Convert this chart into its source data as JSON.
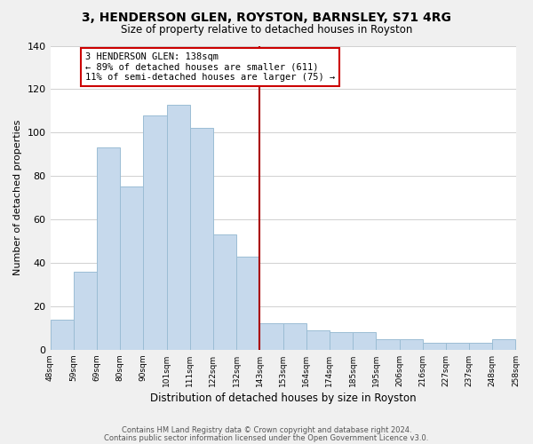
{
  "title": "3, HENDERSON GLEN, ROYSTON, BARNSLEY, S71 4RG",
  "subtitle": "Size of property relative to detached houses in Royston",
  "xlabel": "Distribution of detached houses by size in Royston",
  "ylabel": "Number of detached properties",
  "bar_labels": [
    "48sqm",
    "59sqm",
    "69sqm",
    "80sqm",
    "90sqm",
    "101sqm",
    "111sqm",
    "122sqm",
    "132sqm",
    "143sqm",
    "153sqm",
    "164sqm",
    "174sqm",
    "185sqm",
    "195sqm",
    "206sqm",
    "216sqm",
    "227sqm",
    "237sqm",
    "248sqm",
    "258sqm"
  ],
  "bar_values": [
    14,
    36,
    93,
    75,
    108,
    113,
    102,
    53,
    43,
    12,
    12,
    9,
    8,
    8,
    5,
    5,
    3,
    3,
    3,
    5
  ],
  "bar_color": "#c6d9ec",
  "bar_edge_color": "#9bbdd4",
  "reference_line_color": "#aa0000",
  "annotation_title": "3 HENDERSON GLEN: 138sqm",
  "annotation_line1": "← 89% of detached houses are smaller (611)",
  "annotation_line2": "11% of semi-detached houses are larger (75) →",
  "annotation_box_edge_color": "#cc0000",
  "ylim": [
    0,
    140
  ],
  "yticks": [
    0,
    20,
    40,
    60,
    80,
    100,
    120,
    140
  ],
  "footer1": "Contains HM Land Registry data © Crown copyright and database right 2024.",
  "footer2": "Contains public sector information licensed under the Open Government Licence v3.0.",
  "bg_color": "#f0f0f0",
  "plot_bg_color": "#ffffff",
  "grid_color": "#d0d0d0"
}
